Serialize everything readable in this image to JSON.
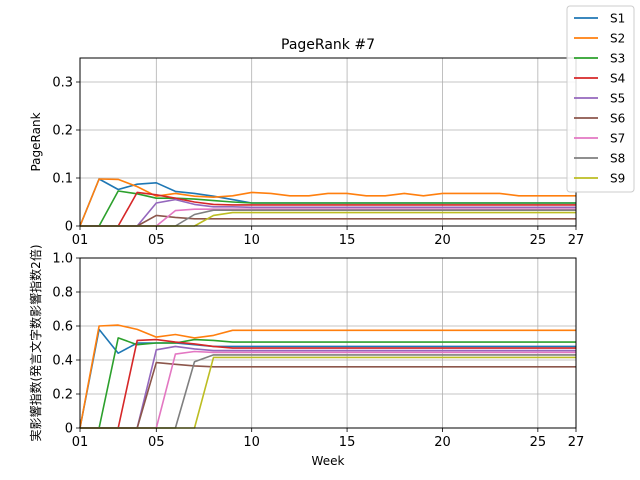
{
  "chart_data": [
    {
      "type": "line",
      "title": "PageRank #7",
      "xlabel": "",
      "ylabel": "PageRank",
      "x": [
        1,
        2,
        3,
        4,
        5,
        6,
        7,
        8,
        9,
        10,
        11,
        12,
        13,
        14,
        15,
        16,
        17,
        18,
        19,
        20,
        21,
        22,
        23,
        24,
        25,
        26,
        27
      ],
      "xlim": [
        1,
        27
      ],
      "ylim": [
        0,
        0.35
      ],
      "xticks": [
        1,
        5,
        10,
        15,
        20,
        25,
        27
      ],
      "xtick_labels": [
        "01",
        "05",
        "10",
        "15",
        "20",
        "25",
        "27"
      ],
      "yticks": [
        0,
        0.1,
        0.2,
        0.3
      ],
      "ytick_labels": [
        "0",
        "0.1",
        "0.2",
        "0.3"
      ],
      "grid": true,
      "series": [
        {
          "name": "S1",
          "color": "#1f77b4",
          "values": [
            0,
            0.098,
            0.076,
            0.087,
            0.09,
            0.072,
            0.068,
            0.062,
            0.055,
            0.048,
            0.048,
            0.048,
            0.048,
            0.048,
            0.048,
            0.048,
            0.048,
            0.048,
            0.048,
            0.048,
            0.048,
            0.048,
            0.048,
            0.048,
            0.048,
            0.048,
            0.048
          ]
        },
        {
          "name": "S2",
          "color": "#ff7f0e",
          "values": [
            0,
            0.098,
            0.097,
            0.082,
            0.062,
            0.068,
            0.062,
            0.06,
            0.063,
            0.07,
            0.068,
            0.063,
            0.063,
            0.068,
            0.068,
            0.063,
            0.063,
            0.068,
            0.063,
            0.068,
            0.068,
            0.068,
            0.068,
            0.063,
            0.063,
            0.063,
            0.063
          ]
        },
        {
          "name": "S3",
          "color": "#2ca02c",
          "values": [
            0,
            0,
            0.073,
            0.067,
            0.058,
            0.058,
            0.056,
            0.053,
            0.05,
            0.048,
            0.048,
            0.048,
            0.048,
            0.048,
            0.048,
            0.048,
            0.048,
            0.048,
            0.048,
            0.048,
            0.048,
            0.048,
            0.048,
            0.048,
            0.048,
            0.048,
            0.048
          ]
        },
        {
          "name": "S4",
          "color": "#d62728",
          "values": [
            0,
            0,
            0,
            0.07,
            0.065,
            0.058,
            0.05,
            0.045,
            0.044,
            0.044,
            0.044,
            0.044,
            0.044,
            0.044,
            0.044,
            0.044,
            0.044,
            0.044,
            0.044,
            0.044,
            0.044,
            0.044,
            0.044,
            0.044,
            0.044,
            0.044,
            0.044
          ]
        },
        {
          "name": "S5",
          "color": "#9467bd",
          "values": [
            0,
            0,
            0,
            0,
            0.048,
            0.055,
            0.045,
            0.04,
            0.04,
            0.039,
            0.039,
            0.039,
            0.039,
            0.039,
            0.039,
            0.039,
            0.039,
            0.039,
            0.039,
            0.039,
            0.039,
            0.039,
            0.039,
            0.039,
            0.039,
            0.039,
            0.039
          ]
        },
        {
          "name": "S6",
          "color": "#8c564b",
          "values": [
            0,
            0,
            0,
            0,
            0.022,
            0.018,
            0.015,
            0.015,
            0.015,
            0.015,
            0.015,
            0.015,
            0.015,
            0.015,
            0.015,
            0.015,
            0.015,
            0.015,
            0.015,
            0.015,
            0.015,
            0.015,
            0.015,
            0.015,
            0.015,
            0.015,
            0.015
          ]
        },
        {
          "name": "S7",
          "color": "#e377c2",
          "values": [
            0,
            0,
            0,
            0,
            0,
            0.032,
            0.035,
            0.035,
            0.035,
            0.035,
            0.035,
            0.035,
            0.035,
            0.035,
            0.035,
            0.035,
            0.035,
            0.035,
            0.035,
            0.035,
            0.035,
            0.035,
            0.035,
            0.035,
            0.035,
            0.035,
            0.035
          ]
        },
        {
          "name": "S8",
          "color": "#7f7f7f",
          "values": [
            0,
            0,
            0,
            0,
            0,
            0,
            0.024,
            0.033,
            0.033,
            0.033,
            0.033,
            0.033,
            0.033,
            0.033,
            0.033,
            0.033,
            0.033,
            0.033,
            0.033,
            0.033,
            0.033,
            0.033,
            0.033,
            0.033,
            0.033,
            0.033,
            0.033
          ]
        },
        {
          "name": "S9",
          "color": "#bcbd22",
          "values": [
            0,
            0,
            0,
            0,
            0,
            0,
            0,
            0.022,
            0.028,
            0.028,
            0.028,
            0.028,
            0.028,
            0.028,
            0.028,
            0.028,
            0.028,
            0.028,
            0.028,
            0.028,
            0.028,
            0.028,
            0.028,
            0.028,
            0.028,
            0.028,
            0.028
          ]
        }
      ],
      "legend": "top-right"
    },
    {
      "type": "line",
      "title": "",
      "xlabel": "Week",
      "ylabel": "実影響指数(発言文字数影響指数2倍)",
      "x": [
        1,
        2,
        3,
        4,
        5,
        6,
        7,
        8,
        9,
        10,
        11,
        12,
        13,
        14,
        15,
        16,
        17,
        18,
        19,
        20,
        21,
        22,
        23,
        24,
        25,
        26,
        27
      ],
      "xlim": [
        1,
        27
      ],
      "ylim": [
        0,
        1.0
      ],
      "xticks": [
        1,
        5,
        10,
        15,
        20,
        25,
        27
      ],
      "xtick_labels": [
        "01",
        "05",
        "10",
        "15",
        "20",
        "25",
        "27"
      ],
      "yticks": [
        0,
        0.2,
        0.4,
        0.6,
        0.8,
        1.0
      ],
      "ytick_labels": [
        "0",
        "0.2",
        "0.4",
        "0.6",
        "0.8",
        "1.0"
      ],
      "grid": true,
      "series": [
        {
          "name": "S1",
          "color": "#1f77b4",
          "values": [
            0,
            0.58,
            0.44,
            0.5,
            0.5,
            0.5,
            0.49,
            0.48,
            0.48,
            0.48,
            0.48,
            0.48,
            0.48,
            0.48,
            0.48,
            0.48,
            0.48,
            0.48,
            0.48,
            0.48,
            0.48,
            0.48,
            0.48,
            0.48,
            0.48,
            0.48,
            0.48
          ]
        },
        {
          "name": "S2",
          "color": "#ff7f0e",
          "values": [
            0,
            0.6,
            0.605,
            0.58,
            0.535,
            0.55,
            0.53,
            0.545,
            0.575,
            0.575,
            0.575,
            0.575,
            0.575,
            0.575,
            0.575,
            0.575,
            0.575,
            0.575,
            0.575,
            0.575,
            0.575,
            0.575,
            0.575,
            0.575,
            0.575,
            0.575,
            0.575
          ]
        },
        {
          "name": "S3",
          "color": "#2ca02c",
          "values": [
            0,
            0,
            0.53,
            0.49,
            0.5,
            0.5,
            0.52,
            0.515,
            0.505,
            0.505,
            0.505,
            0.505,
            0.505,
            0.505,
            0.505,
            0.505,
            0.505,
            0.505,
            0.505,
            0.505,
            0.505,
            0.505,
            0.505,
            0.505,
            0.505,
            0.505,
            0.505
          ]
        },
        {
          "name": "S4",
          "color": "#d62728",
          "values": [
            0,
            0,
            0,
            0.515,
            0.52,
            0.505,
            0.495,
            0.48,
            0.47,
            0.47,
            0.47,
            0.47,
            0.47,
            0.47,
            0.47,
            0.47,
            0.47,
            0.47,
            0.47,
            0.47,
            0.47,
            0.47,
            0.47,
            0.47,
            0.47,
            0.47,
            0.47
          ]
        },
        {
          "name": "S5",
          "color": "#9467bd",
          "values": [
            0,
            0,
            0,
            0,
            0.46,
            0.48,
            0.465,
            0.455,
            0.455,
            0.455,
            0.455,
            0.455,
            0.455,
            0.455,
            0.455,
            0.455,
            0.455,
            0.455,
            0.455,
            0.455,
            0.455,
            0.455,
            0.455,
            0.455,
            0.455,
            0.455,
            0.455
          ]
        },
        {
          "name": "S6",
          "color": "#8c564b",
          "values": [
            0,
            0,
            0,
            0,
            0.385,
            0.375,
            0.365,
            0.36,
            0.36,
            0.36,
            0.36,
            0.36,
            0.36,
            0.36,
            0.36,
            0.36,
            0.36,
            0.36,
            0.36,
            0.36,
            0.36,
            0.36,
            0.36,
            0.36,
            0.36,
            0.36,
            0.36
          ]
        },
        {
          "name": "S7",
          "color": "#e377c2",
          "values": [
            0,
            0,
            0,
            0,
            0,
            0.435,
            0.45,
            0.445,
            0.445,
            0.445,
            0.445,
            0.445,
            0.445,
            0.445,
            0.445,
            0.445,
            0.445,
            0.445,
            0.445,
            0.445,
            0.445,
            0.445,
            0.445,
            0.445,
            0.445,
            0.445,
            0.445
          ]
        },
        {
          "name": "S8",
          "color": "#7f7f7f",
          "values": [
            0,
            0,
            0,
            0,
            0,
            0,
            0.39,
            0.43,
            0.43,
            0.43,
            0.43,
            0.43,
            0.43,
            0.43,
            0.43,
            0.43,
            0.43,
            0.43,
            0.43,
            0.43,
            0.43,
            0.43,
            0.43,
            0.43,
            0.43,
            0.43,
            0.43
          ]
        },
        {
          "name": "S9",
          "color": "#bcbd22",
          "values": [
            0,
            0,
            0,
            0,
            0,
            0,
            0,
            0.415,
            0.415,
            0.415,
            0.415,
            0.415,
            0.415,
            0.415,
            0.415,
            0.415,
            0.415,
            0.415,
            0.415,
            0.415,
            0.415,
            0.415,
            0.415,
            0.415,
            0.415,
            0.415,
            0.415
          ]
        }
      ]
    }
  ]
}
